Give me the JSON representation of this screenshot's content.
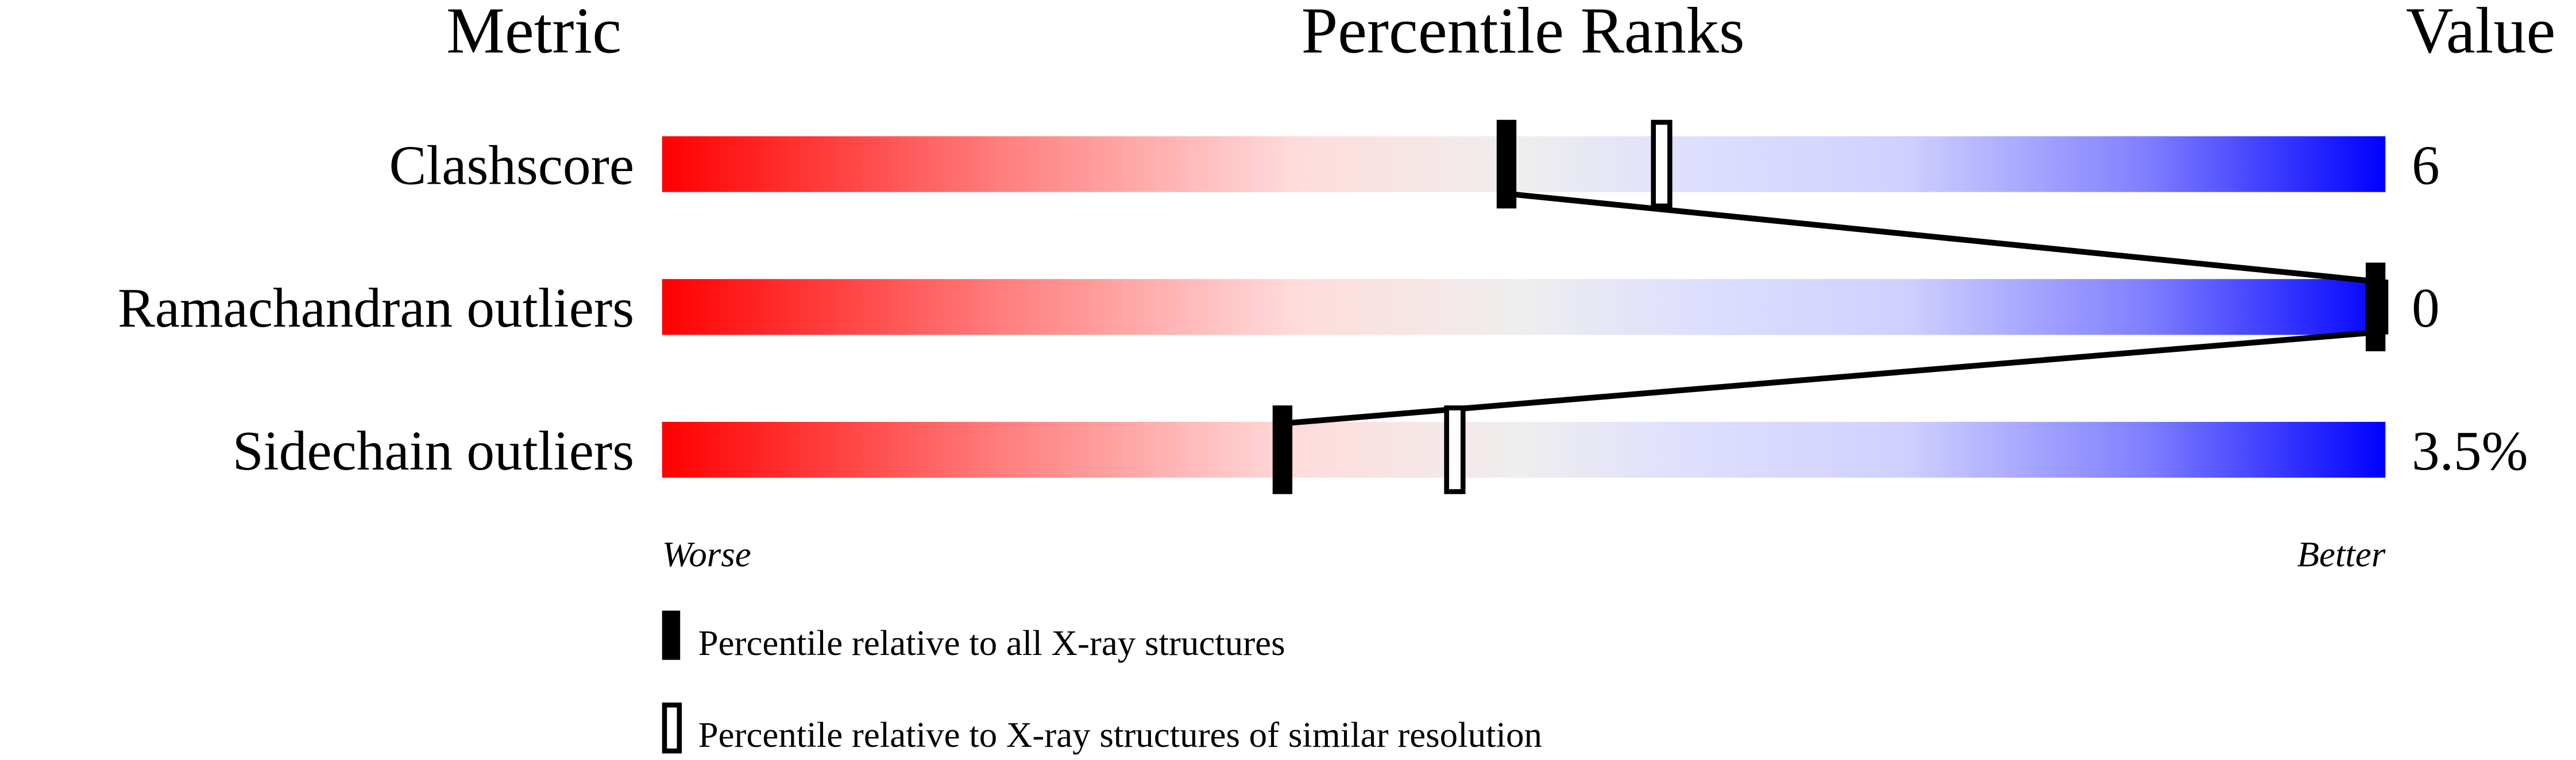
{
  "chart_data": {
    "type": "bar",
    "headers": {
      "metric": "Metric",
      "ranks": "Percentile Ranks",
      "value": "Value"
    },
    "xlim": [
      0,
      100
    ],
    "axis_labels": {
      "left": "Worse",
      "right": "Better"
    },
    "rows": [
      {
        "metric": "Clashscore",
        "value": "6",
        "percentile_all": 49,
        "percentile_similar": 58
      },
      {
        "metric": "Ramachandran outliers",
        "value": "0",
        "percentile_all": 100,
        "percentile_similar": 100
      },
      {
        "metric": "Sidechain outliers",
        "value": "3.5%",
        "percentile_all": 36,
        "percentile_similar": 46
      }
    ],
    "legend": [
      {
        "marker": "filled",
        "label": "Percentile relative to all X-ray structures"
      },
      {
        "marker": "open",
        "label": "Percentile relative to X-ray structures of similar resolution"
      }
    ],
    "colors": {
      "worse": "#ff0000",
      "middle": "#eeeeee",
      "better": "#0000ff",
      "marker": "#000000"
    }
  }
}
